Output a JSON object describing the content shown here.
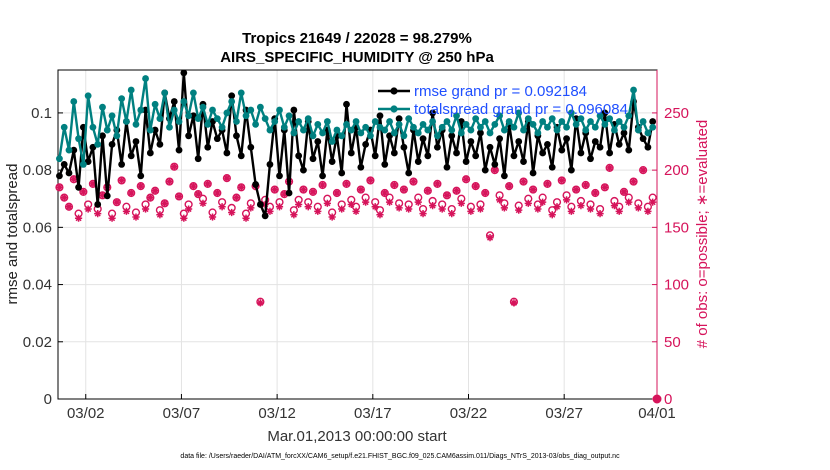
{
  "chart_data": {
    "type": "line",
    "title": "Tropics 21649 / 22028 = 98.279%",
    "subtitle": "AIRS_SPECIFIC_HUMIDITY @ 250 hPa",
    "xlabel": "Mar.01,2013 00:00:00 start",
    "ylabel": "rmse and totalspread",
    "y2label": "# of obs: o=possible; ∗=evaluated",
    "footer": "data file: /Users/raeder/DAI/ATM_forcXX/CAM6_setup/f.e21.FHIST_BGC.f09_025.CAM6assim.011/Diags_NTrS_2013-03/obs_diag_output.nc",
    "xlim": [
      0.3,
      31.6
    ],
    "ylim": [
      0,
      0.115
    ],
    "y2lim": [
      0,
      287.5
    ],
    "x_ticks": [
      1.75,
      6.75,
      11.75,
      16.75,
      21.75,
      26.75,
      31.75
    ],
    "x_tick_labels": [
      "03/02",
      "03/07",
      "03/12",
      "03/17",
      "03/22",
      "03/27",
      "04/01"
    ],
    "y_ticks": [
      0,
      0.02,
      0.04,
      0.06,
      0.08,
      0.1
    ],
    "y_tick_labels": [
      "0",
      "0.02",
      "0.04",
      "0.06",
      "0.08",
      "0.1"
    ],
    "y2_ticks": [
      0,
      50,
      100,
      150,
      200,
      250
    ],
    "y2_tick_labels": [
      "0",
      "50",
      "100",
      "150",
      "200",
      "250"
    ],
    "legend_location": "top-right",
    "colors": {
      "rmse": "#000000",
      "spread": "#008080",
      "obs": "#d6145b"
    },
    "series": [
      {
        "name": "rmse",
        "label": "rmse grand pr = 0.092184",
        "x": [
          0.375,
          0.625,
          0.875,
          1.125,
          1.375,
          1.625,
          1.875,
          2.125,
          2.375,
          2.625,
          2.875,
          3.125,
          3.375,
          3.625,
          3.875,
          4.125,
          4.375,
          4.625,
          4.875,
          5.125,
          5.375,
          5.625,
          5.875,
          6.125,
          6.375,
          6.625,
          6.875,
          7.125,
          7.375,
          7.625,
          7.875,
          8.125,
          8.375,
          8.625,
          8.875,
          9.125,
          9.375,
          9.625,
          9.875,
          10.125,
          10.375,
          10.625,
          10.875,
          11.125,
          11.375,
          11.625,
          11.875,
          12.125,
          12.375,
          12.625,
          12.875,
          13.125,
          13.375,
          13.625,
          13.875,
          14.125,
          14.375,
          14.625,
          14.875,
          15.125,
          15.375,
          15.625,
          15.875,
          16.125,
          16.375,
          16.625,
          16.875,
          17.125,
          17.375,
          17.625,
          17.875,
          18.125,
          18.375,
          18.625,
          18.875,
          19.125,
          19.375,
          19.625,
          19.875,
          20.125,
          20.375,
          20.625,
          20.875,
          21.125,
          21.375,
          21.625,
          21.875,
          22.125,
          22.375,
          22.625,
          22.875,
          23.125,
          23.375,
          23.625,
          23.875,
          24.125,
          24.375,
          24.625,
          24.875,
          25.125,
          25.375,
          25.625,
          25.875,
          26.125,
          26.375,
          26.625,
          26.875,
          27.125,
          27.375,
          27.625,
          27.875,
          28.125,
          28.375,
          28.625,
          28.875,
          29.125,
          29.375,
          29.625,
          29.875,
          30.125,
          30.375,
          30.625,
          30.875,
          31.125,
          31.375
        ],
        "values": [
          0.078,
          0.082,
          0.079,
          0.087,
          0.074,
          0.095,
          0.083,
          0.088,
          0.068,
          0.092,
          0.071,
          0.089,
          0.094,
          0.082,
          0.097,
          0.085,
          0.09,
          0.078,
          0.101,
          0.086,
          0.094,
          0.089,
          0.107,
          0.098,
          0.104,
          0.087,
          0.114,
          0.092,
          0.099,
          0.084,
          0.103,
          0.088,
          0.097,
          0.091,
          0.094,
          0.086,
          0.106,
          0.092,
          0.085,
          0.101,
          0.088,
          0.075,
          0.068,
          0.064,
          0.082,
          0.098,
          0.078,
          0.094,
          0.072,
          0.101,
          0.085,
          0.08,
          0.097,
          0.084,
          0.09,
          0.078,
          0.094,
          0.083,
          0.092,
          0.079,
          0.103,
          0.086,
          0.095,
          0.081,
          0.089,
          0.094,
          0.085,
          0.099,
          0.082,
          0.092,
          0.086,
          0.098,
          0.088,
          0.079,
          0.094,
          0.083,
          0.091,
          0.085,
          0.1,
          0.088,
          0.094,
          0.081,
          0.092,
          0.086,
          0.097,
          0.083,
          0.09,
          0.085,
          0.093,
          0.08,
          0.088,
          0.082,
          0.091,
          0.078,
          0.096,
          0.085,
          0.09,
          0.083,
          0.097,
          0.079,
          0.092,
          0.086,
          0.089,
          0.081,
          0.095,
          0.087,
          0.091,
          0.08,
          0.098,
          0.086,
          0.093,
          0.084,
          0.09,
          0.088,
          0.1,
          0.086,
          0.096,
          0.089,
          0.093,
          0.087,
          0.104,
          0.095,
          0.091,
          0.088,
          0.097
        ]
      },
      {
        "name": "totalspread",
        "label": "totalspread grand pr = 0.096084",
        "x": [
          0.375,
          0.625,
          0.875,
          1.125,
          1.375,
          1.625,
          1.875,
          2.125,
          2.375,
          2.625,
          2.875,
          3.125,
          3.375,
          3.625,
          3.875,
          4.125,
          4.375,
          4.625,
          4.875,
          5.125,
          5.375,
          5.625,
          5.875,
          6.125,
          6.375,
          6.625,
          6.875,
          7.125,
          7.375,
          7.625,
          7.875,
          8.125,
          8.375,
          8.625,
          8.875,
          9.125,
          9.375,
          9.625,
          9.875,
          10.125,
          10.375,
          10.625,
          10.875,
          11.125,
          11.375,
          11.625,
          11.875,
          12.125,
          12.375,
          12.625,
          12.875,
          13.125,
          13.375,
          13.625,
          13.875,
          14.125,
          14.375,
          14.625,
          14.875,
          15.125,
          15.375,
          15.625,
          15.875,
          16.125,
          16.375,
          16.625,
          16.875,
          17.125,
          17.375,
          17.625,
          17.875,
          18.125,
          18.375,
          18.625,
          18.875,
          19.125,
          19.375,
          19.625,
          19.875,
          20.125,
          20.375,
          20.625,
          20.875,
          21.125,
          21.375,
          21.625,
          21.875,
          22.125,
          22.375,
          22.625,
          22.875,
          23.125,
          23.375,
          23.625,
          23.875,
          24.125,
          24.375,
          24.625,
          24.875,
          25.125,
          25.375,
          25.625,
          25.875,
          26.125,
          26.375,
          26.625,
          26.875,
          27.125,
          27.375,
          27.625,
          27.875,
          28.125,
          28.375,
          28.625,
          28.875,
          29.125,
          29.375,
          29.625,
          29.875,
          30.125,
          30.375,
          30.625,
          30.875,
          31.125,
          31.375
        ],
        "values": [
          0.084,
          0.095,
          0.087,
          0.104,
          0.091,
          0.082,
          0.106,
          0.095,
          0.089,
          0.102,
          0.094,
          0.099,
          0.092,
          0.105,
          0.097,
          0.108,
          0.096,
          0.101,
          0.112,
          0.094,
          0.103,
          0.098,
          0.107,
          0.095,
          0.101,
          0.097,
          0.104,
          0.099,
          0.107,
          0.098,
          0.102,
          0.096,
          0.101,
          0.098,
          0.095,
          0.1,
          0.104,
          0.097,
          0.107,
          0.099,
          0.101,
          0.096,
          0.102,
          0.098,
          0.094,
          0.097,
          0.101,
          0.095,
          0.099,
          0.093,
          0.097,
          0.094,
          0.098,
          0.092,
          0.096,
          0.093,
          0.097,
          0.09,
          0.094,
          0.092,
          0.096,
          0.094,
          0.097,
          0.093,
          0.095,
          0.092,
          0.097,
          0.095,
          0.094,
          0.097,
          0.093,
          0.096,
          0.092,
          0.098,
          0.095,
          0.093,
          0.096,
          0.094,
          0.097,
          0.092,
          0.095,
          0.097,
          0.094,
          0.099,
          0.093,
          0.096,
          0.094,
          0.098,
          0.095,
          0.097,
          0.093,
          0.096,
          0.099,
          0.094,
          0.097,
          0.095,
          0.1,
          0.094,
          0.098,
          0.096,
          0.093,
          0.097,
          0.095,
          0.098,
          0.094,
          0.097,
          0.095,
          0.1,
          0.096,
          0.098,
          0.094,
          0.097,
          0.095,
          0.099,
          0.096,
          0.098,
          0.094,
          0.097,
          0.095,
          0.099,
          0.108,
          0.094,
          0.097,
          0.093,
          0.095
        ]
      },
      {
        "name": "obs_possible",
        "label": "o=possible",
        "x": [
          0.375,
          0.625,
          0.875,
          1.125,
          1.375,
          1.625,
          1.875,
          2.125,
          2.375,
          2.625,
          2.875,
          3.125,
          3.375,
          3.625,
          3.875,
          4.125,
          4.375,
          4.625,
          4.875,
          5.125,
          5.375,
          5.625,
          5.875,
          6.125,
          6.375,
          6.625,
          6.875,
          7.125,
          7.375,
          7.625,
          7.875,
          8.125,
          8.375,
          8.625,
          8.875,
          9.125,
          9.375,
          9.625,
          9.875,
          10.125,
          10.375,
          10.625,
          10.875,
          11.125,
          11.375,
          11.625,
          11.875,
          12.125,
          12.375,
          12.625,
          12.875,
          13.125,
          13.375,
          13.625,
          13.875,
          14.125,
          14.375,
          14.625,
          14.875,
          15.125,
          15.375,
          15.625,
          15.875,
          16.125,
          16.375,
          16.625,
          16.875,
          17.125,
          17.375,
          17.625,
          17.875,
          18.125,
          18.375,
          18.625,
          18.875,
          19.125,
          19.375,
          19.625,
          19.875,
          20.125,
          20.375,
          20.625,
          20.875,
          21.125,
          21.375,
          21.625,
          21.875,
          22.125,
          22.375,
          22.625,
          22.875,
          23.125,
          23.375,
          23.625,
          23.875,
          24.125,
          24.375,
          24.625,
          24.875,
          25.125,
          25.375,
          25.625,
          25.875,
          26.125,
          26.375,
          26.625,
          26.875,
          27.125,
          27.375,
          27.625,
          27.875,
          28.125,
          28.375,
          28.625,
          28.875,
          29.125,
          29.375,
          29.625,
          29.875,
          30.125,
          30.375,
          30.625,
          30.875,
          31.125,
          31.375
        ],
        "values": [
          185,
          176,
          168,
          192,
          162,
          181,
          170,
          188,
          166,
          178,
          185,
          162,
          172,
          191,
          168,
          180,
          163,
          186,
          170,
          176,
          182,
          165,
          171,
          190,
          203,
          177,
          162,
          170,
          186,
          179,
          175,
          188,
          163,
          180,
          172,
          193,
          167,
          176,
          185,
          162,
          171,
          186,
          85,
          174,
          168,
          183,
          172,
          179,
          190,
          165,
          174,
          183,
          172,
          181,
          168,
          187,
          175,
          163,
          180,
          170,
          188,
          174,
          168,
          183,
          176,
          191,
          172,
          165,
          180,
          176,
          187,
          171,
          183,
          170,
          190,
          176,
          166,
          182,
          173,
          188,
          170,
          178,
          166,
          182,
          175,
          192,
          168,
          186,
          170,
          180,
          143,
          200,
          178,
          171,
          186,
          85,
          169,
          190,
          175,
          183,
          170,
          176,
          188,
          165,
          172,
          191,
          178,
          168,
          183,
          173,
          187,
          170,
          180,
          166,
          185,
          202,
          173,
          168,
          181,
          176,
          190,
          171,
          200,
          168,
          176
        ]
      },
      {
        "name": "obs_evaluated",
        "label": "∗=evaluated",
        "x": [
          0.375,
          0.625,
          0.875,
          1.125,
          1.375,
          1.625,
          1.875,
          2.125,
          2.375,
          2.625,
          2.875,
          3.125,
          3.375,
          3.625,
          3.875,
          4.125,
          4.375,
          4.625,
          4.875,
          5.125,
          5.375,
          5.625,
          5.875,
          6.125,
          6.375,
          6.625,
          6.875,
          7.125,
          7.375,
          7.625,
          7.875,
          8.125,
          8.375,
          8.625,
          8.875,
          9.125,
          9.375,
          9.625,
          9.875,
          10.125,
          10.375,
          10.625,
          10.875,
          11.125,
          11.375,
          11.625,
          11.875,
          12.125,
          12.375,
          12.625,
          12.875,
          13.125,
          13.375,
          13.625,
          13.875,
          14.125,
          14.375,
          14.625,
          14.875,
          15.125,
          15.375,
          15.625,
          15.875,
          16.125,
          16.375,
          16.625,
          16.875,
          17.125,
          17.375,
          17.625,
          17.875,
          18.125,
          18.375,
          18.625,
          18.875,
          19.125,
          19.375,
          19.625,
          19.875,
          20.125,
          20.375,
          20.625,
          20.875,
          21.125,
          21.375,
          21.625,
          21.875,
          22.125,
          22.375,
          22.625,
          22.875,
          23.125,
          23.375,
          23.625,
          23.875,
          24.125,
          24.375,
          24.625,
          24.875,
          25.125,
          25.375,
          25.625,
          25.875,
          26.125,
          26.375,
          26.625,
          26.875,
          27.125,
          27.375,
          27.625,
          27.875,
          28.125,
          28.375,
          28.625,
          28.875,
          29.125,
          29.375,
          29.625,
          29.875,
          30.125,
          30.375,
          30.625,
          30.875,
          31.125,
          31.375
        ],
        "values": [
          185,
          176,
          168,
          192,
          158,
          181,
          166,
          188,
          162,
          178,
          185,
          158,
          172,
          191,
          164,
          180,
          159,
          186,
          166,
          176,
          182,
          161,
          171,
          190,
          203,
          177,
          158,
          166,
          186,
          179,
          171,
          188,
          159,
          180,
          168,
          193,
          163,
          176,
          185,
          158,
          167,
          186,
          84,
          170,
          164,
          183,
          168,
          179,
          190,
          161,
          170,
          183,
          168,
          181,
          164,
          187,
          171,
          159,
          180,
          166,
          188,
          170,
          164,
          183,
          172,
          191,
          168,
          161,
          180,
          172,
          187,
          167,
          183,
          166,
          190,
          172,
          162,
          182,
          169,
          188,
          166,
          178,
          162,
          182,
          171,
          192,
          164,
          186,
          166,
          180,
          141,
          200,
          174,
          167,
          186,
          84,
          165,
          190,
          171,
          183,
          166,
          172,
          188,
          161,
          168,
          191,
          174,
          164,
          183,
          169,
          187,
          166,
          180,
          162,
          185,
          202,
          169,
          164,
          181,
          172,
          190,
          167,
          200,
          164,
          172
        ]
      }
    ],
    "end_point": {
      "x": 31.6,
      "possible": 0,
      "evaluated": 0
    }
  }
}
